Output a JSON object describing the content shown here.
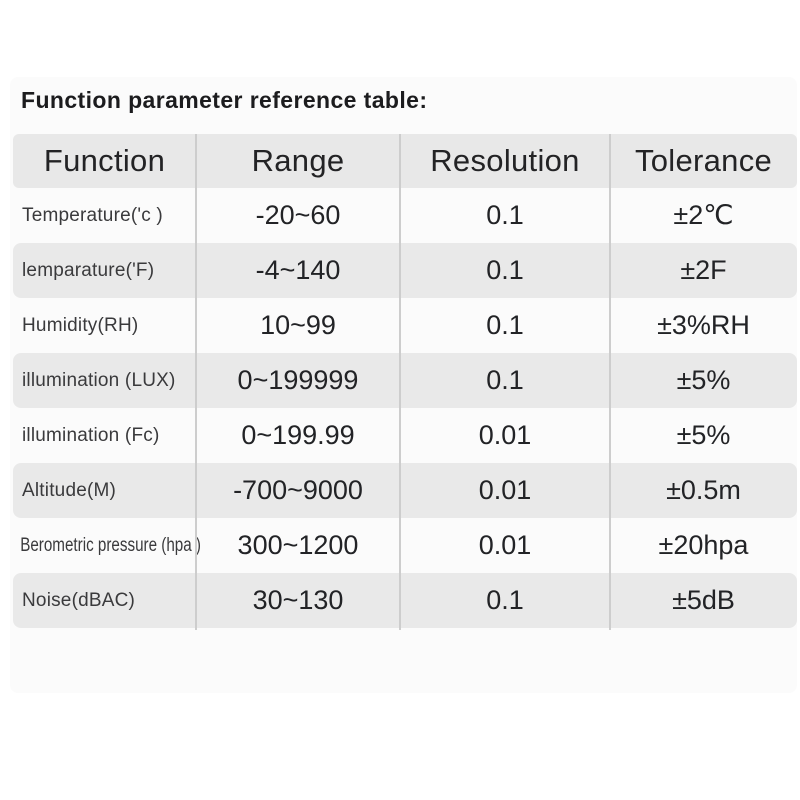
{
  "title": "Function parameter reference table:",
  "colors": {
    "page_background": "#ffffff",
    "panel_background": "#fbfbfb",
    "header_background": "#e8e8e8",
    "shaded_row_background": "#e9e9e9",
    "separator": "#cdcdcd",
    "text_dark": "#1c1c1e"
  },
  "table": {
    "headers": [
      "Function",
      "Range",
      "Resolution",
      "Tolerance"
    ],
    "rows": [
      {
        "function": "Temperature('c )",
        "range": "-20~60",
        "resolution": "0.1",
        "tolerance": "±2℃"
      },
      {
        "function": "lemparature('F)",
        "range": "-4~140",
        "resolution": "0.1",
        "tolerance": "±2F"
      },
      {
        "function": "Humidity(RH)",
        "range": "10~99",
        "resolution": "0.1",
        "tolerance": "±3%RH"
      },
      {
        "function": "illumination (LUX)",
        "range": "0~199999",
        "resolution": "0.1",
        "tolerance": "±5%"
      },
      {
        "function": "illumination (Fc)",
        "range": "0~199.99",
        "resolution": "0.01",
        "tolerance": "±5%"
      },
      {
        "function": "Altitude(M)",
        "range": "-700~9000",
        "resolution": "0.01",
        "tolerance": "±0.5m"
      },
      {
        "function": "Berometric pressure (hpa )",
        "range": "300~1200",
        "resolution": "0.01",
        "tolerance": "±20hpa"
      },
      {
        "function": "Noise(dBAC)",
        "range": "30~130",
        "resolution": "0.1",
        "tolerance": "±5dB"
      }
    ]
  }
}
